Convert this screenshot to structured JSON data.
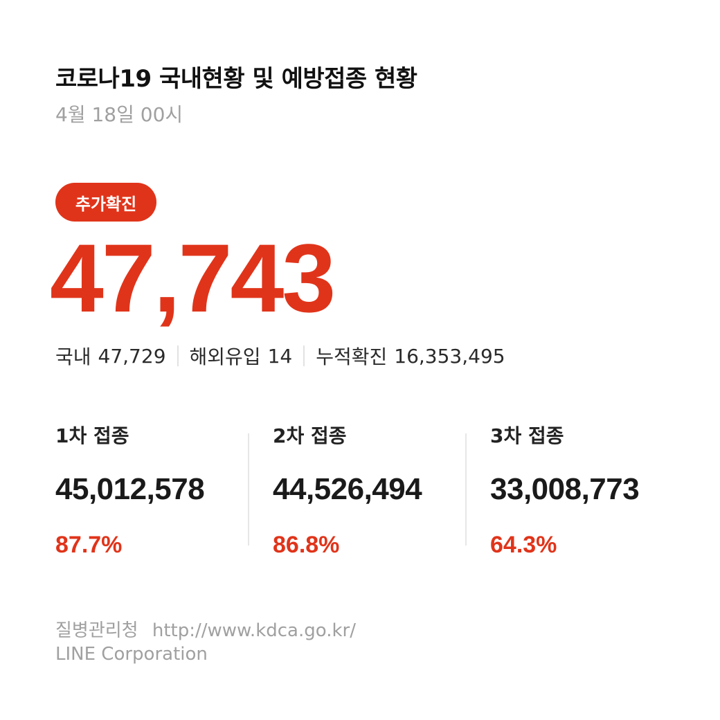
{
  "header": {
    "title": "코로나19 국내현황 및 예방접종 현황",
    "date": "4월 18일 00시"
  },
  "confirmed": {
    "badge_label": "추가확진",
    "new_cases": "47,743",
    "domestic_label": "국내",
    "domestic_value": "47,729",
    "overseas_label": "해외유입",
    "overseas_value": "14",
    "cumulative_label": "누적확진",
    "cumulative_value": "16,353,495"
  },
  "vaccination": [
    {
      "label": "1차 접종",
      "count": "45,012,578",
      "percent": "87.7%"
    },
    {
      "label": "2차 접종",
      "count": "44,526,494",
      "percent": "86.8%"
    },
    {
      "label": "3차 접종",
      "count": "33,008,773",
      "percent": "64.3%"
    }
  ],
  "footer": {
    "source_name": "질병관리청",
    "source_url": "http://www.kdca.go.kr/",
    "company": "LINE Corporation"
  },
  "colors": {
    "accent": "#e0341a",
    "muted_text": "#a0a0a0",
    "divider": "#e6e6e6"
  }
}
